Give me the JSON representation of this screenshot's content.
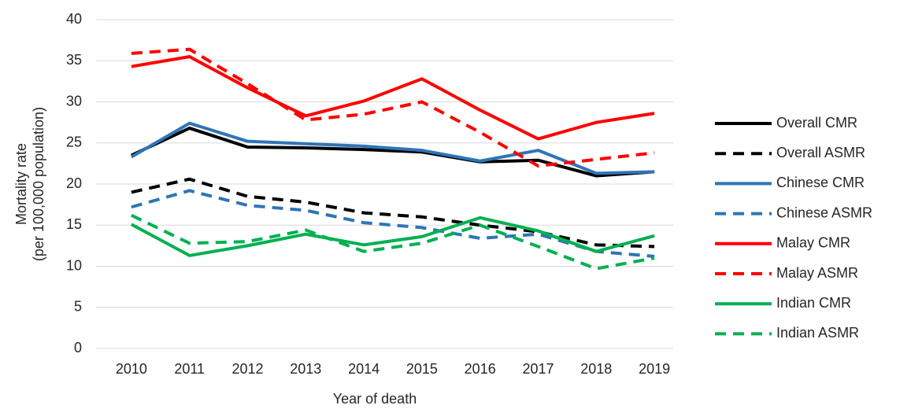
{
  "chart_data": {
    "type": "line",
    "x_label": "Year of death",
    "y_label": [
      "Mortality rate",
      "(per 100,000 population)"
    ],
    "categories": [
      "2010",
      "2011",
      "2012",
      "2013",
      "2014",
      "2015",
      "2016",
      "2017",
      "2018",
      "2019"
    ],
    "ylim": [
      0,
      40
    ],
    "yticks": [
      0,
      5,
      10,
      15,
      20,
      25,
      30,
      35,
      40
    ],
    "grid": true,
    "legend": "right",
    "series": [
      {
        "name": "Overall CMR",
        "color": "#000000",
        "dashed": false,
        "values": [
          23.5,
          26.8,
          24.5,
          24.4,
          24.2,
          23.9,
          22.7,
          22.9,
          21.0,
          21.5
        ]
      },
      {
        "name": "Overall ASMR",
        "color": "#000000",
        "dashed": true,
        "values": [
          19.0,
          20.6,
          18.5,
          17.8,
          16.5,
          16.0,
          15.0,
          14.2,
          12.6,
          12.4
        ]
      },
      {
        "name": "Chinese CMR",
        "color": "#2e75b6",
        "dashed": false,
        "values": [
          23.3,
          27.4,
          25.2,
          24.9,
          24.6,
          24.1,
          22.8,
          24.1,
          21.3,
          21.5
        ]
      },
      {
        "name": "Chinese ASMR",
        "color": "#2e75b6",
        "dashed": true,
        "values": [
          17.2,
          19.2,
          17.4,
          16.8,
          15.3,
          14.7,
          13.4,
          13.9,
          11.8,
          11.2
        ]
      },
      {
        "name": "Malay CMR",
        "color": "#ff0000",
        "dashed": false,
        "values": [
          34.3,
          35.5,
          31.7,
          28.3,
          30.1,
          32.8,
          29.0,
          25.5,
          27.5,
          28.6
        ]
      },
      {
        "name": "Malay ASMR",
        "color": "#ff0000",
        "dashed": true,
        "values": [
          35.9,
          36.4,
          32.2,
          27.8,
          28.5,
          30.0,
          26.3,
          22.2,
          23.0,
          23.8
        ]
      },
      {
        "name": "Indian CMR",
        "color": "#00b050",
        "dashed": false,
        "values": [
          15.1,
          11.3,
          12.5,
          13.9,
          12.6,
          13.6,
          15.9,
          14.3,
          11.8,
          13.7
        ]
      },
      {
        "name": "Indian ASMR",
        "color": "#00b050",
        "dashed": true,
        "values": [
          16.2,
          12.8,
          13.0,
          14.4,
          11.8,
          12.8,
          15.0,
          12.4,
          9.7,
          11.0
        ]
      }
    ]
  }
}
